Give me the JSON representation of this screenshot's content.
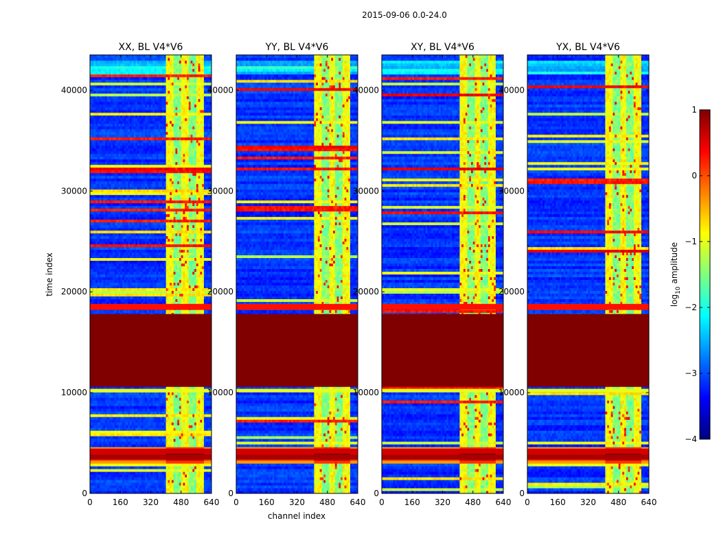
{
  "chart_data": {
    "type": "heatmap",
    "suptitle": "2015-09-06 0.0-24.0",
    "xlabel": "channel index",
    "ylabel": "time index",
    "xlim": [
      0,
      640
    ],
    "ylim": [
      0,
      43500
    ],
    "xticks": [
      0,
      160,
      320,
      480,
      640
    ],
    "yticks": [
      0,
      10000,
      20000,
      30000,
      40000
    ],
    "panels": [
      {
        "title": "XX, BL V4*V6",
        "band_channels": [
          400,
          600
        ],
        "rfi_hot_start": 3000
      },
      {
        "title": "YY, BL V4*V6",
        "band_channels": [
          410,
          600
        ],
        "rfi_hot_start": 3100
      },
      {
        "title": "XY, BL V4*V6",
        "band_channels": [
          410,
          600
        ],
        "rfi_hot_start": 3000
      },
      {
        "title": "YX, BL V4*V6",
        "band_channels": [
          410,
          600
        ],
        "rfi_hot_start": 3200
      }
    ],
    "saturated_time_range": [
      10600,
      17800
    ],
    "bright_time_rows": [
      {
        "t": 18500,
        "width": 600,
        "level": 0.3
      },
      {
        "t": 10200,
        "width": 350,
        "level": -1
      },
      {
        "t": 4200,
        "width": 500,
        "level": 0.6
      },
      {
        "t": 3600,
        "width": 500,
        "level": 0.8
      }
    ],
    "colorbar": {
      "label_prefix": "log",
      "label_sub": "10",
      "label_suffix": " amplitude",
      "range": [
        -4,
        1
      ],
      "ticks": [
        1,
        0,
        -1,
        -2,
        -3,
        -4
      ],
      "tick_labels": [
        "1",
        "0",
        "−1",
        "−2",
        "−3",
        "−4"
      ],
      "colormap": "jet"
    }
  }
}
